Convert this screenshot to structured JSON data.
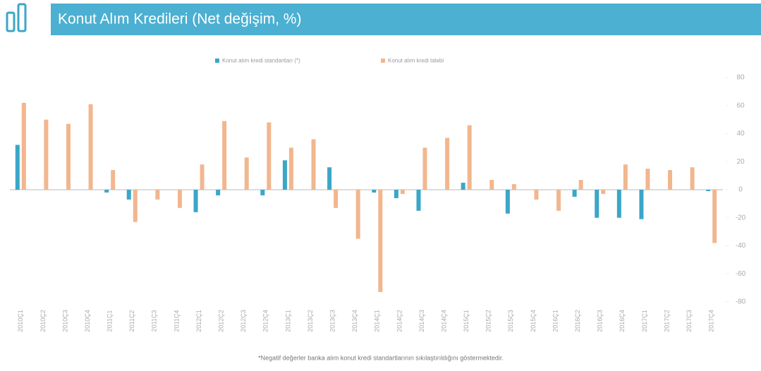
{
  "chart_data": {
    "type": "bar",
    "title": "Konut Alım Kredileri (Net değişim, %)",
    "footnote": "*Negatif değerler banka alım konut kredi standartlarının sıkılaştırıldığını göstermektedir.",
    "categories": [
      "2010Ç1",
      "2010Ç2",
      "2010Ç3",
      "2010Ç4",
      "2011Ç1",
      "2011Ç2",
      "2011Ç3",
      "2011Ç4",
      "2012Ç1",
      "2012Ç2",
      "2012Ç3",
      "2012Ç4",
      "2013Ç1",
      "2013Ç2",
      "2013Ç3",
      "2013Ç4",
      "2014Ç1",
      "2014Ç2",
      "2014Ç3",
      "2014Ç4",
      "2015Ç1",
      "2015Ç2",
      "2015Ç3",
      "2015Ç4",
      "2016Ç1",
      "2016Ç2",
      "2016Ç3",
      "2016Ç4",
      "2017Ç1",
      "2017Ç2",
      "2017Ç3",
      "2017Ç4"
    ],
    "series": [
      {
        "name": "Konut alım kredi standartları (*)",
        "color": "#3ba6c8",
        "values": [
          32,
          0,
          0,
          0,
          -2,
          -7,
          0,
          0,
          -16,
          -4,
          0,
          -4,
          21,
          0,
          16,
          0,
          -2,
          -6,
          -15,
          0,
          5,
          0,
          -17,
          0,
          0,
          -5,
          -20,
          -20,
          -21,
          0,
          0,
          -1
        ]
      },
      {
        "name": "Konut alım kredi talebi",
        "color": "#f2b68e",
        "values": [
          62,
          50,
          47,
          61,
          14,
          -23,
          -7,
          -13,
          18,
          49,
          23,
          48,
          30,
          36,
          -13,
          -35,
          -73,
          -3,
          30,
          37,
          46,
          7,
          4,
          -7,
          -15,
          7,
          -3,
          18,
          15,
          14,
          16,
          -38
        ]
      }
    ],
    "ylim": [
      -80,
      80
    ],
    "yticks": [
      -80,
      -60,
      -40,
      -20,
      0,
      20,
      40,
      60,
      80
    ]
  }
}
